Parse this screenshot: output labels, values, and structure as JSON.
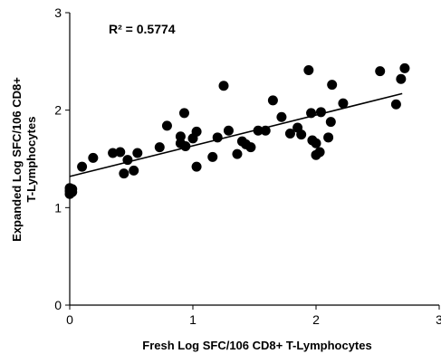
{
  "chart_data": {
    "type": "scatter",
    "title": "",
    "xlabel": "Fresh Log SFC/106 CD8+ T-Lymphocytes",
    "ylabel_lines": [
      "Expanded Log SFC/106 CD8+",
      "T-Lymphocytes"
    ],
    "xlim": [
      0,
      3
    ],
    "ylim": [
      0,
      3
    ],
    "xticks": [
      "0",
      "1",
      "2",
      "3"
    ],
    "yticks": [
      "0",
      "1",
      "2",
      "3"
    ],
    "annotation": "R² = 0.5774",
    "grid": false,
    "legend": "none",
    "point_color": "#000000",
    "trendline": {
      "x": [
        0,
        2.7
      ],
      "y": [
        1.32,
        2.17
      ]
    },
    "points": [
      [
        0.0,
        1.14
      ],
      [
        0.0,
        1.17
      ],
      [
        0.0,
        1.2
      ],
      [
        0.02,
        1.16
      ],
      [
        0.02,
        1.19
      ],
      [
        0.1,
        1.42
      ],
      [
        0.19,
        1.51
      ],
      [
        0.35,
        1.56
      ],
      [
        0.41,
        1.57
      ],
      [
        0.44,
        1.35
      ],
      [
        0.47,
        1.49
      ],
      [
        0.52,
        1.38
      ],
      [
        0.55,
        1.56
      ],
      [
        0.73,
        1.62
      ],
      [
        0.79,
        1.84
      ],
      [
        0.9,
        1.66
      ],
      [
        0.9,
        1.73
      ],
      [
        0.93,
        1.97
      ],
      [
        0.94,
        1.63
      ],
      [
        1.0,
        1.71
      ],
      [
        1.03,
        1.78
      ],
      [
        1.03,
        1.42
      ],
      [
        1.16,
        1.52
      ],
      [
        1.2,
        1.72
      ],
      [
        1.25,
        2.25
      ],
      [
        1.29,
        1.79
      ],
      [
        1.36,
        1.55
      ],
      [
        1.4,
        1.68
      ],
      [
        1.43,
        1.65
      ],
      [
        1.47,
        1.62
      ],
      [
        1.53,
        1.79
      ],
      [
        1.59,
        1.79
      ],
      [
        1.65,
        2.1
      ],
      [
        1.72,
        1.93
      ],
      [
        1.79,
        1.76
      ],
      [
        1.85,
        1.82
      ],
      [
        1.88,
        1.75
      ],
      [
        1.94,
        2.41
      ],
      [
        1.96,
        1.97
      ],
      [
        1.97,
        1.69
      ],
      [
        2.0,
        1.54
      ],
      [
        2.0,
        1.66
      ],
      [
        2.03,
        1.57
      ],
      [
        2.04,
        1.98
      ],
      [
        2.1,
        1.72
      ],
      [
        2.12,
        1.88
      ],
      [
        2.13,
        2.26
      ],
      [
        2.22,
        2.07
      ],
      [
        2.52,
        2.4
      ],
      [
        2.65,
        2.06
      ],
      [
        2.69,
        2.32
      ],
      [
        2.72,
        2.43
      ]
    ]
  }
}
